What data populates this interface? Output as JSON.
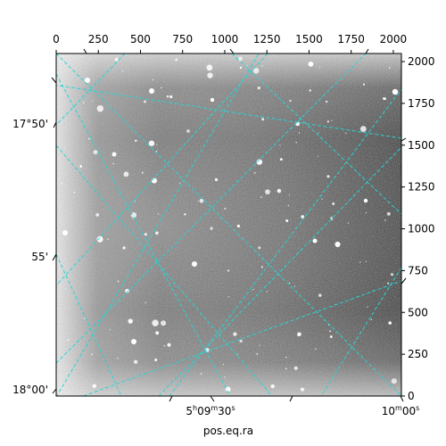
{
  "chart_data": {
    "type": "heatmap",
    "description_kind": "astronomical-image",
    "title": "",
    "xlabel": "pos.eq.ra",
    "ylabel": "",
    "pixel_axes": {
      "x": {
        "ticks": [
          0,
          250,
          500,
          750,
          1000,
          1250,
          1500,
          1750,
          2000
        ],
        "range": [
          0,
          2048
        ]
      },
      "y": {
        "ticks": [
          0,
          250,
          500,
          750,
          1000,
          1250,
          1500,
          1750,
          2000
        ],
        "range": [
          0,
          2048
        ]
      }
    },
    "world_axes": {
      "ra_tick_labels": [
        {
          "text": "5ʰ09ᵐ30ˢ",
          "h": "5",
          "m": "09",
          "s": "30"
        },
        {
          "text": "10ᵐ00ˢ",
          "m": "10",
          "s": "00"
        }
      ],
      "dec_tick_labels": [
        "17°50'",
        "55'",
        "18°00'"
      ]
    },
    "colors": {
      "grid": "#29d4d4",
      "image_bright": "#ffffff",
      "image_dark": "#1a1a1a",
      "frame": "#000000"
    },
    "grid": true,
    "colormap": "gray"
  }
}
